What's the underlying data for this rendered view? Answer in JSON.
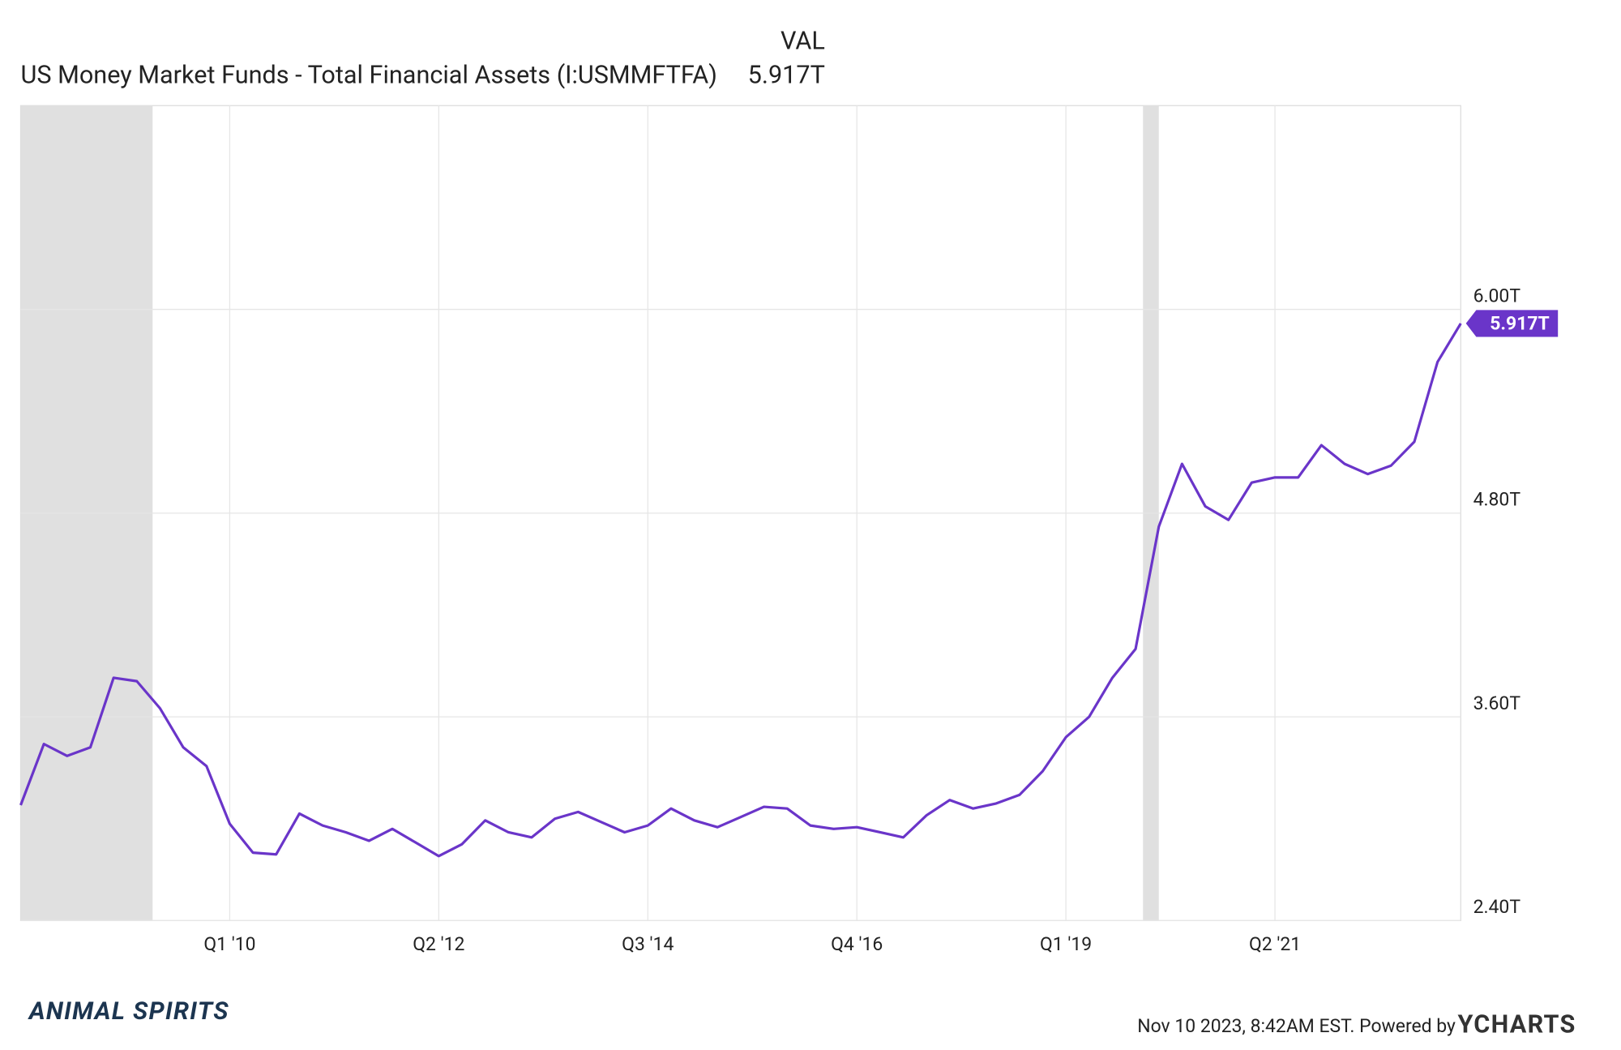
{
  "chart_data": {
    "type": "line",
    "column_header": "VAL",
    "latest_label": "5.917T",
    "x": [
      2007.75,
      2008,
      2008.25,
      2008.5,
      2008.75,
      2009,
      2009.25,
      2009.5,
      2009.75,
      2010,
      2010.25,
      2010.5,
      2010.75,
      2011,
      2011.25,
      2011.5,
      2011.75,
      2012,
      2012.25,
      2012.5,
      2012.75,
      2013,
      2013.25,
      2013.5,
      2013.75,
      2014,
      2014.25,
      2014.5,
      2014.75,
      2015,
      2015.25,
      2015.5,
      2015.75,
      2016,
      2016.25,
      2016.5,
      2016.75,
      2017,
      2017.25,
      2017.5,
      2017.75,
      2018,
      2018.25,
      2018.5,
      2018.75,
      2019,
      2019.25,
      2019.5,
      2019.75,
      2020,
      2020.25,
      2020.5,
      2020.75,
      2021,
      2021.25,
      2021.5,
      2021.75,
      2022,
      2022.25,
      2022.5,
      2022.75,
      2023,
      2023.25
    ],
    "series": [
      {
        "name": "US Money Market Funds - Total Financial Assets (I:USMMFTFA)",
        "color": "#6a35c9",
        "values": [
          3.08,
          3.44,
          3.37,
          3.42,
          3.83,
          3.81,
          3.65,
          3.42,
          3.31,
          2.97,
          2.8,
          2.79,
          3.03,
          2.96,
          2.92,
          2.87,
          2.94,
          2.86,
          2.78,
          2.85,
          2.99,
          2.92,
          2.89,
          3.0,
          3.04,
          2.98,
          2.92,
          2.96,
          3.06,
          2.99,
          2.95,
          3.01,
          3.07,
          3.06,
          2.96,
          2.94,
          2.95,
          2.92,
          2.89,
          3.02,
          3.11,
          3.06,
          3.09,
          3.14,
          3.28,
          3.48,
          3.6,
          3.83,
          4.0,
          4.72,
          5.09,
          4.84,
          4.76,
          4.98,
          5.01,
          5.01,
          5.2,
          5.09,
          5.03,
          5.08,
          5.22,
          5.69,
          5.917
        ]
      }
    ],
    "xlim": [
      2007.75,
      2023.25
    ],
    "xticks": [
      {
        "value": 2010,
        "label": "Q1 '10"
      },
      {
        "value": 2012.25,
        "label": "Q2 '12"
      },
      {
        "value": 2014.5,
        "label": "Q3 '14"
      },
      {
        "value": 2016.75,
        "label": "Q4 '16"
      },
      {
        "value": 2019,
        "label": "Q1 '19"
      },
      {
        "value": 2021.25,
        "label": "Q2 '21"
      }
    ],
    "ylim": [
      2.4,
      7.2
    ],
    "yticks": [
      {
        "value": 2.4,
        "label": "2.40T"
      },
      {
        "value": 3.6,
        "label": "3.60T"
      },
      {
        "value": 4.8,
        "label": "4.80T"
      },
      {
        "value": 6,
        "label": "6.00T"
      }
    ],
    "shaded_ranges": [
      [
        2007.75,
        2009.17
      ],
      [
        2019.83,
        2020.0
      ]
    ],
    "shade_color": "#e0e0e0",
    "grid": true,
    "footer": {
      "logo": "ANIMAL SPIRITS",
      "timestamp": "Nov 10 2023, 8:42AM EST. Powered by",
      "brand": "YCHARTS"
    }
  }
}
